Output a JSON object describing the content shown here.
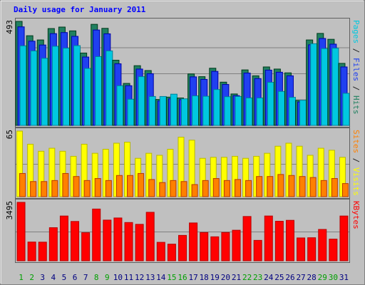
{
  "chart_data": {
    "type": "bar",
    "title": "Daily usage for January 2011",
    "categories": [
      "1",
      "2",
      "3",
      "4",
      "5",
      "6",
      "7",
      "8",
      "9",
      "10",
      "11",
      "12",
      "13",
      "14",
      "15",
      "16",
      "17",
      "18",
      "19",
      "20",
      "21",
      "22",
      "23",
      "24",
      "25",
      "26",
      "27",
      "28",
      "29",
      "30",
      "31"
    ],
    "weekend_days": [
      "1",
      "2",
      "8",
      "9",
      "15",
      "16",
      "22",
      "23",
      "29",
      "30"
    ],
    "panels": [
      {
        "id": "top",
        "ymax_label": "493",
        "ymax": 493,
        "ylabels": [
          {
            "text": "Pages",
            "color": "#00c8e0"
          },
          {
            "text": " / ",
            "color": "#202020"
          },
          {
            "text": "Files",
            "color": "#2040f0"
          },
          {
            "text": " / ",
            "color": "#202020"
          },
          {
            "text": "Hits",
            "color": "#208060"
          }
        ],
        "series": [
          {
            "name": "Hits",
            "color": "#208060",
            "values": [
              493,
              425,
              405,
              459,
              466,
              448,
              343,
              479,
              460,
              309,
              199,
              283,
              260,
              123,
              134,
              130,
              244,
              231,
              271,
              205,
              149,
              263,
              235,
              277,
              267,
              249,
              118,
              405,
              436,
              408,
              294
            ]
          },
          {
            "name": "Files",
            "color": "#2040f0",
            "values": [
              467,
              399,
              381,
              435,
              440,
              422,
              324,
              452,
              434,
              292,
              188,
              267,
              245,
              116,
              126,
              122,
              230,
              218,
              256,
              194,
              141,
              248,
              222,
              262,
              252,
              235,
              111,
              382,
              412,
              385,
              277
            ]
          },
          {
            "name": "Pages",
            "color": "#00c8e0",
            "values": [
              377,
              353,
              318,
              375,
              366,
              378,
              270,
              326,
              353,
              188,
              124,
              231,
              137,
              137,
              148,
              126,
              140,
              138,
              170,
              136,
              137,
              130,
              130,
              204,
              161,
              133,
              119,
              387,
              364,
              366,
              152
            ]
          }
        ]
      },
      {
        "id": "middle",
        "ymax_label": "65",
        "ymax": 65,
        "ylabels": [
          {
            "text": "Sites",
            "color": "#ff8000"
          },
          {
            "text": " / ",
            "color": "#202020"
          },
          {
            "text": "Visits",
            "color": "#ffff00"
          }
        ],
        "series": [
          {
            "name": "Visits",
            "color": "#ffff00",
            "values": [
              65,
              52,
              45,
              48,
              45,
              40,
              52,
              43,
              47,
              53,
              54,
              38,
              43,
              41,
              47,
              59,
              56,
              38,
              39,
              39,
              40,
              38,
              40,
              43,
              50,
              53,
              50,
              41,
              48,
              46,
              39
            ]
          },
          {
            "name": "Sites",
            "color": "#ff8000",
            "values": [
              23,
              15,
              15,
              16,
              23,
              20,
              16,
              18,
              16,
              21,
              21,
              23,
              17,
              14,
              16,
              15,
              12,
              16,
              18,
              16,
              17,
              16,
              20,
              20,
              22,
              21,
              20,
              19,
              16,
              18,
              13
            ]
          }
        ]
      },
      {
        "id": "bottom",
        "ymax_label": "3495",
        "ymax": 3495,
        "ylabels": [
          {
            "text": "KBytes",
            "color": "#ff0000"
          }
        ],
        "series": [
          {
            "name": "KBytes",
            "color": "#ff0000",
            "values": [
              3495,
              1120,
              1114,
              1979,
              2678,
              2352,
              1679,
              3095,
              2433,
              2561,
              2289,
              2180,
              2900,
              1104,
              995,
              1519,
              2263,
              1691,
              1434,
              1692,
              1827,
              2649,
              1221,
              2679,
              2364,
              2420,
              1367,
              1378,
              1875,
              1295,
              2678
            ]
          }
        ]
      }
    ],
    "colors": {
      "background": "#c0c0c0",
      "plot_bg": "#c0c0c0",
      "title": "#0000ff",
      "axis_text": "#000000",
      "weekend_label": "#00a000",
      "weekday_label": "#000080",
      "gridline": "#808080"
    }
  }
}
